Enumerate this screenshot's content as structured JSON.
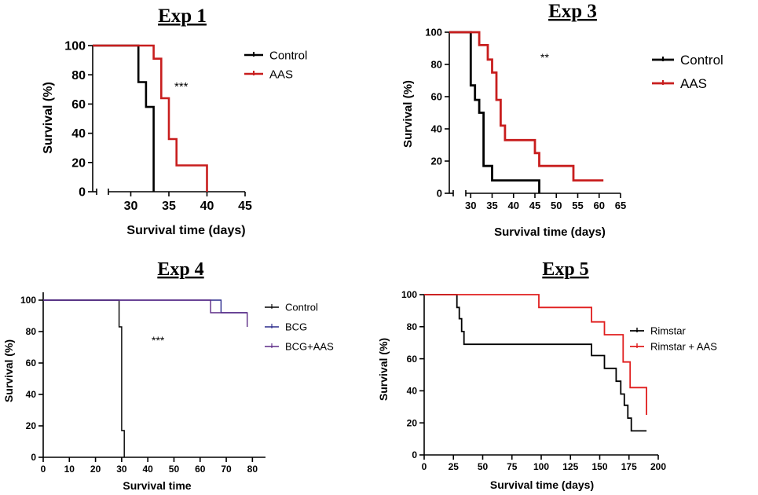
{
  "chart_data": [
    {
      "type": "line",
      "title": "Exp 1",
      "xlabel": "Survival time (days)",
      "ylabel": "Survival (%)",
      "xlim": [
        25,
        45
      ],
      "ylim": [
        0,
        100
      ],
      "xticks": [
        "30",
        "35",
        "40",
        "45"
      ],
      "yticks": [
        "0",
        "20",
        "40",
        "60",
        "80",
        "100"
      ],
      "annotation": "***",
      "legend_position": "right",
      "series": [
        {
          "name": "Control",
          "color": "#000000",
          "x": [
            25,
            31,
            31,
            32,
            32,
            33,
            33
          ],
          "y": [
            100,
            100,
            75,
            75,
            58,
            58,
            0
          ]
        },
        {
          "name": "AAS",
          "color": "#c81e1e",
          "x": [
            25,
            33,
            33,
            34,
            34,
            35,
            35,
            36,
            36,
            40,
            40
          ],
          "y": [
            100,
            100,
            91,
            91,
            64,
            64,
            36,
            36,
            18,
            18,
            0
          ]
        }
      ]
    },
    {
      "type": "line",
      "title": "Exp 3",
      "xlabel": "Survival time (days)",
      "ylabel": "Survival (%)",
      "xlim": [
        25,
        65
      ],
      "ylim": [
        0,
        100
      ],
      "xticks": [
        "30",
        "35",
        "40",
        "45",
        "50",
        "55",
        "60",
        "65"
      ],
      "yticks": [
        "0",
        "20",
        "40",
        "60",
        "80",
        "100"
      ],
      "annotation": "**",
      "legend_position": "right",
      "series": [
        {
          "name": "Control",
          "color": "#000000",
          "x": [
            25,
            30,
            30,
            31,
            31,
            32,
            32,
            33,
            33,
            35,
            35,
            46,
            46
          ],
          "y": [
            100,
            100,
            67,
            67,
            58,
            58,
            50,
            50,
            17,
            17,
            8,
            8,
            0
          ]
        },
        {
          "name": "AAS",
          "color": "#c81e1e",
          "x": [
            25,
            32,
            32,
            34,
            34,
            35,
            35,
            36,
            36,
            37,
            37,
            38,
            38,
            45,
            45,
            46,
            46,
            54,
            54,
            61
          ],
          "y": [
            100,
            100,
            92,
            92,
            83,
            83,
            75,
            75,
            58,
            58,
            42,
            42,
            33,
            33,
            25,
            25,
            17,
            17,
            8,
            8
          ]
        }
      ]
    },
    {
      "type": "line",
      "title": "Exp 4",
      "xlabel": "Survival time",
      "ylabel": "Survival (%)",
      "xlim": [
        0,
        85
      ],
      "ylim": [
        0,
        105
      ],
      "xticks": [
        "0",
        "10",
        "20",
        "30",
        "40",
        "50",
        "60",
        "70",
        "80"
      ],
      "yticks": [
        "0",
        "20",
        "40",
        "60",
        "80",
        "100"
      ],
      "annotation": "***",
      "legend_position": "right",
      "series": [
        {
          "name": "Control",
          "color": "#000000",
          "x": [
            0,
            29,
            29,
            30,
            30,
            31,
            31
          ],
          "y": [
            100,
            100,
            83,
            83,
            17,
            17,
            0
          ]
        },
        {
          "name": "BCG",
          "color": "#2a2a8c",
          "x": [
            0,
            68,
            68,
            78
          ],
          "y": [
            100,
            100,
            92,
            92
          ]
        },
        {
          "name": "BCG+AAS",
          "color": "#5b2a86",
          "x": [
            0,
            64,
            64,
            78,
            78
          ],
          "y": [
            100,
            100,
            92,
            92,
            83
          ]
        }
      ]
    },
    {
      "type": "line",
      "title": "Exp 5",
      "xlabel": "Survival time (days)",
      "ylabel": "Survival (%)",
      "xlim": [
        0,
        200
      ],
      "ylim": [
        0,
        100
      ],
      "xticks": [
        "0",
        "25",
        "50",
        "75",
        "100",
        "125",
        "150",
        "175",
        "200"
      ],
      "yticks": [
        "0",
        "20",
        "40",
        "60",
        "80",
        "100"
      ],
      "annotation": "",
      "legend_position": "right",
      "series": [
        {
          "name": "Rimstar",
          "color": "#000000",
          "x": [
            0,
            28,
            28,
            30,
            30,
            32,
            32,
            34,
            34,
            143,
            143,
            154,
            154,
            164,
            164,
            168,
            168,
            171,
            171,
            174,
            174,
            177,
            177,
            183,
            183,
            190
          ],
          "y": [
            100,
            100,
            92,
            92,
            85,
            85,
            77,
            77,
            69,
            69,
            62,
            62,
            54,
            54,
            46,
            46,
            38,
            38,
            31,
            31,
            23,
            23,
            15,
            15,
            15,
            15
          ]
        },
        {
          "name": "Rimstar + AAS",
          "color": "#e01e1e",
          "x": [
            0,
            98,
            98,
            143,
            143,
            154,
            154,
            170,
            170,
            176,
            176,
            190,
            190
          ],
          "y": [
            100,
            100,
            92,
            92,
            83,
            83,
            75,
            75,
            58,
            58,
            42,
            42,
            25
          ]
        }
      ]
    }
  ]
}
